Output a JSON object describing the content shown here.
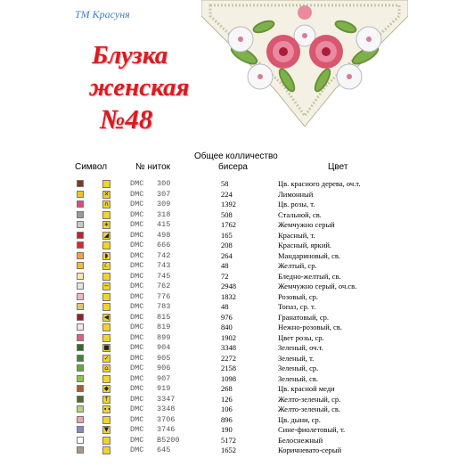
{
  "brand": "ТМ Красуня",
  "title": {
    "line1": "Блузка",
    "line2": "женская",
    "line3": "№48"
  },
  "headers": {
    "total": "Общее колличество",
    "beads": "бисера",
    "symbol": "Символ",
    "thread": "№ ниток",
    "color": "Цвет"
  },
  "rows": [
    {
      "sw": "#7a3b1f",
      "sy": "#f1d32a",
      "g": "",
      "brand": "DMC",
      "code": "300",
      "count": "58",
      "name": "Цв. красного дерева, оч.т."
    },
    {
      "sw": "#f3c417",
      "sy": "#f1d32a",
      "g": "✕",
      "brand": "DMC",
      "code": "307",
      "count": "224",
      "name": "Лимонный"
    },
    {
      "sw": "#e0487a",
      "sy": "#f1d32a",
      "g": "∩",
      "brand": "DMC",
      "code": "309",
      "count": "1392",
      "name": "Цв. розы, т."
    },
    {
      "sw": "#9a9a9a",
      "sy": "#f1d32a",
      "g": "",
      "brand": "DMC",
      "code": "318",
      "count": "508",
      "name": "Стальной, св."
    },
    {
      "sw": "#c8c8c8",
      "sy": "#f1d32a",
      "g": "∗",
      "brand": "DMC",
      "code": "415",
      "count": "1762",
      "name": "Жемчужно серый"
    },
    {
      "sw": "#c0232b",
      "sy": "#f1d32a",
      "g": "◢",
      "brand": "DMC",
      "code": "498",
      "count": "165",
      "name": "Красный, т."
    },
    {
      "sw": "#e2232b",
      "sy": "#f1d32a",
      "g": "",
      "brand": "DMC",
      "code": "666",
      "count": "208",
      "name": "Красный, яркий."
    },
    {
      "sw": "#f0a43a",
      "sy": "#f1d32a",
      "g": "◗",
      "brand": "DMC",
      "code": "742",
      "count": "264",
      "name": "Мандариновый, св."
    },
    {
      "sw": "#f2be2a",
      "sy": "#f1d32a",
      "g": "☾",
      "brand": "DMC",
      "code": "743",
      "count": "48",
      "name": "Желтый, ср."
    },
    {
      "sw": "#fbe8a0",
      "sy": "#f1d32a",
      "g": "",
      "brand": "DMC",
      "code": "745",
      "count": "72",
      "name": "Бледно-желтый, св."
    },
    {
      "sw": "#e4e4e4",
      "sy": "#f1d32a",
      "g": "−",
      "brand": "DMC",
      "code": "762",
      "count": "2948",
      "name": "Жемчужно серый, оч.св."
    },
    {
      "sw": "#f3b6bd",
      "sy": "#f1d32a",
      "g": "",
      "brand": "DMC",
      "code": "776",
      "count": "1832",
      "name": "Розовый, ср."
    },
    {
      "sw": "#e3c56a",
      "sy": "#f1d32a",
      "g": "",
      "brand": "DMC",
      "code": "783",
      "count": "48",
      "name": "Топаз, ср. т."
    },
    {
      "sw": "#9b1c2a",
      "sy": "#f1d32a",
      "g": "◀",
      "brand": "DMC",
      "code": "815",
      "count": "976",
      "name": "Гранатовый, ср."
    },
    {
      "sw": "#fde3e6",
      "sy": "#f1d32a",
      "g": "",
      "brand": "DMC",
      "code": "819",
      "count": "840",
      "name": "Нежно-розовый, св."
    },
    {
      "sw": "#e3607d",
      "sy": "#f1d32a",
      "g": "",
      "brand": "DMC",
      "code": "899",
      "count": "1902",
      "name": "Цвет розы, ср."
    },
    {
      "sw": "#2f6b22",
      "sy": "#f1d32a",
      "g": "■",
      "brand": "DMC",
      "code": "904",
      "count": "3348",
      "name": "Зеленый, оч.т."
    },
    {
      "sw": "#3f8a2c",
      "sy": "#f1d32a",
      "g": "✓",
      "brand": "DMC",
      "code": "905",
      "count": "2272",
      "name": "Зеленый, т."
    },
    {
      "sw": "#62ac34",
      "sy": "#f1d32a",
      "g": "⌂",
      "brand": "DMC",
      "code": "906",
      "count": "2158",
      "name": "Зеленый, ср."
    },
    {
      "sw": "#8ec63f",
      "sy": "#f1d32a",
      "g": "",
      "brand": "DMC",
      "code": "907",
      "count": "1098",
      "name": "Зеленый, св."
    },
    {
      "sw": "#b3592c",
      "sy": "#f1d32a",
      "g": "◆",
      "brand": "DMC",
      "code": "919",
      "count": "268",
      "name": "Цв. красной меди"
    },
    {
      "sw": "#4d6a34",
      "sy": "#f1d32a",
      "g": "↑",
      "brand": "DMC",
      "code": "3347",
      "count": "126",
      "name": "Желто-зеленый, ср."
    },
    {
      "sw": "#b9d27c",
      "sy": "#f1d32a",
      "g": "∙∙",
      "brand": "DMC",
      "code": "3348",
      "count": "106",
      "name": "Желто-зеленый, св."
    },
    {
      "sw": "#e9a5b0",
      "sy": "#f1d32a",
      "g": "",
      "brand": "DMC",
      "code": "3706",
      "count": "896",
      "name": "Цв. дыни, ср."
    },
    {
      "sw": "#8a86c7",
      "sy": "#f1d32a",
      "g": "▼",
      "brand": "DMC",
      "code": "3746",
      "count": "190",
      "name": "Сине-фиолетовый, т."
    },
    {
      "sw": "#ffffff",
      "sy": "#f1d32a",
      "g": "",
      "brand": "DMC",
      "code": "B5200",
      "count": "5172",
      "name": "Белоснежный"
    },
    {
      "sw": "#a79a86",
      "sy": "#f1d32a",
      "g": "",
      "brand": "DMC",
      "code": "645",
      "count": "1652",
      "name": "Коричневато-серый"
    }
  ]
}
